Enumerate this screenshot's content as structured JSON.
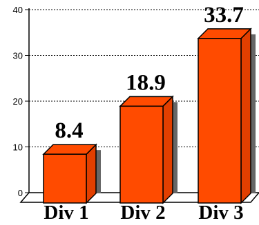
{
  "chart_data": {
    "type": "bar",
    "categories": [
      "Div 1",
      "Div 2",
      "Div 3"
    ],
    "values": [
      8.4,
      18.9,
      33.7
    ],
    "data_labels": [
      "8.4",
      "18.9",
      "33.7"
    ],
    "y_ticks": [
      "0",
      "10",
      "20",
      "30",
      "40"
    ],
    "ylim": [
      0,
      40
    ],
    "grid": true,
    "bar_color": "#ff4b00",
    "title": "",
    "xlabel": "",
    "ylabel": ""
  }
}
